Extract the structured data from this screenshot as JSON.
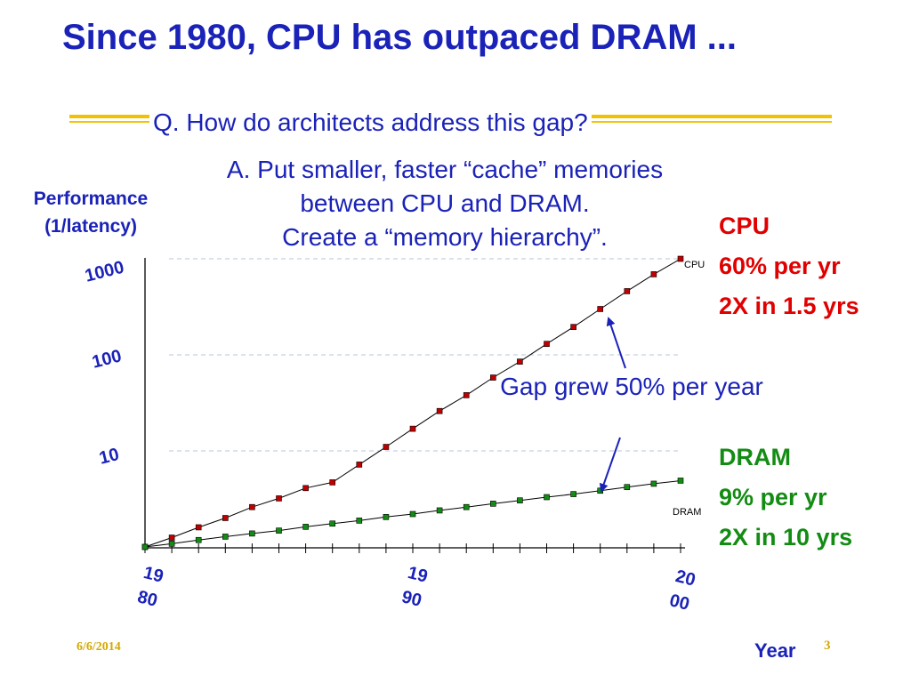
{
  "slide": {
    "title": "Since 1980, CPU has outpaced DRAM ...",
    "question": "Q. How do architects address this gap?",
    "answer_lines": [
      "A. Put smaller, faster “cache” memories",
      "between CPU and DRAM.",
      "Create a “memory hierarchy”."
    ],
    "cpu_note": [
      "CPU",
      "60% per yr",
      "2X in 1.5 yrs"
    ],
    "dram_note": [
      "DRAM",
      "9% per yr",
      "2X in 10 yrs"
    ],
    "gap_note": "Gap grew 50% per year",
    "footer_date": "6/6/2014",
    "footer_page": "3"
  },
  "colors": {
    "title": "#1a22b8",
    "cpu": "#e00000",
    "dram": "#138c13",
    "rule": "#f2c200"
  },
  "chart_data": {
    "type": "line",
    "ylabel_lines": [
      "Performance",
      "(1/latency)"
    ],
    "xlabel": "Year",
    "y_scale": "log",
    "ylim": [
      1,
      1000
    ],
    "y_ticks": [
      {
        "value": 1000,
        "label": "1000"
      },
      {
        "value": 100,
        "label": "100"
      },
      {
        "value": 10,
        "label": "10"
      }
    ],
    "x_range": [
      1980,
      2000
    ],
    "x_ticks": [
      {
        "value": 1980,
        "label": [
          "19",
          "80"
        ]
      },
      {
        "value": 1990,
        "label": [
          "19",
          "90"
        ]
      },
      {
        "value": 2000,
        "label": [
          "20",
          "00"
        ]
      }
    ],
    "grid": "dashed horizontal",
    "x": [
      1980,
      1981,
      1982,
      1983,
      1984,
      1985,
      1986,
      1987,
      1988,
      1989,
      1990,
      1991,
      1992,
      1993,
      1994,
      1995,
      1996,
      1997,
      1998,
      1999,
      2000
    ],
    "series": [
      {
        "name": "CPU",
        "color": "#c00000",
        "values": [
          1,
          1.25,
          1.6,
          2.0,
          2.6,
          3.2,
          4.1,
          4.7,
          7.2,
          11,
          17,
          26,
          38,
          58,
          85,
          130,
          195,
          300,
          460,
          690,
          1000
        ]
      },
      {
        "name": "DRAM",
        "color": "#138c13",
        "values": [
          1,
          1.08,
          1.18,
          1.28,
          1.38,
          1.48,
          1.62,
          1.75,
          1.88,
          2.05,
          2.2,
          2.4,
          2.6,
          2.82,
          3.05,
          3.3,
          3.55,
          3.85,
          4.2,
          4.55,
          4.9
        ]
      }
    ]
  }
}
